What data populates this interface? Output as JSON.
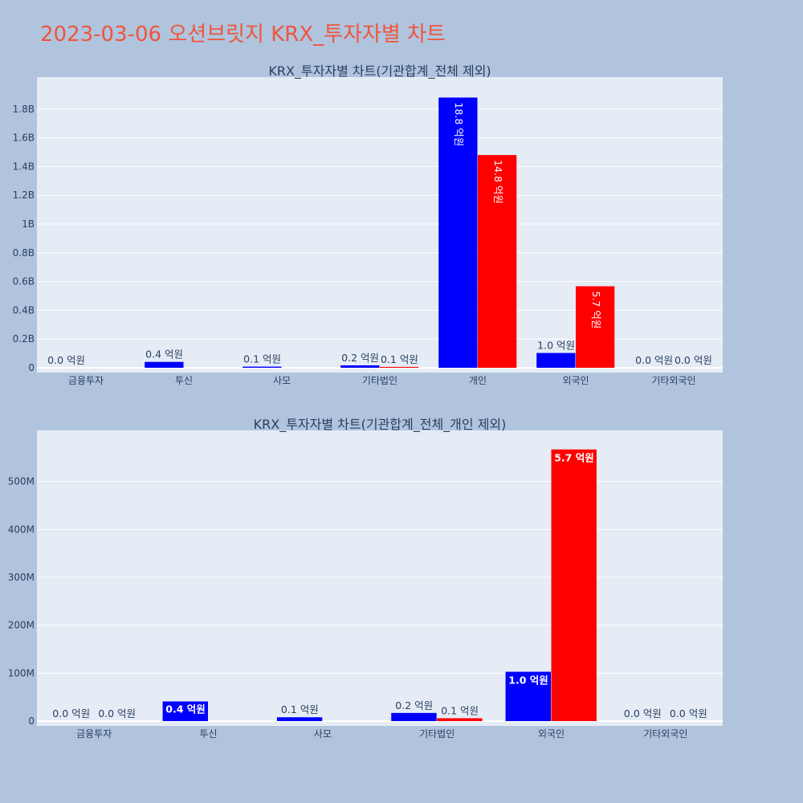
{
  "page": {
    "title": "2023-03-06 오션브릿지 KRX_투자자별 차트",
    "title_color": "#ef553b",
    "background": "#b0c4de",
    "plot_background": "#e5ecf6"
  },
  "chart_data": [
    {
      "type": "bar",
      "title": "KRX_투자자별 차트(기관합계_전체 제외)",
      "categories": [
        "금융투자",
        "투신",
        "사모",
        "기타법인",
        "개인",
        "외국인",
        "기타외국인"
      ],
      "series": [
        {
          "color": "#0000ff",
          "values": [
            0,
            41000000,
            8000000,
            17000000,
            1880000000,
            103000000,
            0
          ],
          "labels": [
            "0.0 억원",
            "0.4 억원",
            "0.1 억원",
            "0.2 억원",
            "18.8 억원",
            "1.0 억원",
            "0.0 억원"
          ]
        },
        {
          "color": "#ff0000",
          "values": [
            0,
            0,
            0,
            6000000,
            1480000000,
            567000000,
            0
          ],
          "labels": [
            "",
            "",
            "",
            "0.1 억원",
            "14.8 억원",
            "5.7 억원",
            "0.0 억원"
          ]
        }
      ],
      "ylim": [
        0,
        2000000000
      ],
      "yticks": [
        0,
        200000000,
        400000000,
        600000000,
        800000000,
        1000000000,
        1200000000,
        1400000000,
        1600000000,
        1800000000
      ],
      "ytick_labels": [
        "0",
        "0.2B",
        "0.4B",
        "0.6B",
        "0.8B",
        "1B",
        "1.2B",
        "1.4B",
        "1.6B",
        "1.8B"
      ],
      "grid": true,
      "xlabel": "",
      "ylabel": ""
    },
    {
      "type": "bar",
      "title": "KRX_투자자별 차트(기관합계_전체_개인 제외)",
      "categories": [
        "금융투자",
        "투신",
        "사모",
        "기타법인",
        "외국인",
        "기타외국인"
      ],
      "series": [
        {
          "color": "#0000ff",
          "values": [
            0,
            41000000,
            8000000,
            17000000,
            103000000,
            0
          ],
          "labels": [
            "0.0 억원",
            "0.4 억원",
            "0.1 억원",
            "0.2 억원",
            "1.0 억원",
            "0.0 억원"
          ]
        },
        {
          "color": "#ff0000",
          "values": [
            0,
            0,
            0,
            6000000,
            567000000,
            0
          ],
          "labels": [
            "0.0 억원",
            "",
            "",
            "0.1 억원",
            "5.7 억원",
            "0.0 억원"
          ]
        }
      ],
      "ylim": [
        0,
        600000000
      ],
      "yticks": [
        0,
        100000000,
        200000000,
        300000000,
        400000000,
        500000000
      ],
      "ytick_labels": [
        "0",
        "100M",
        "200M",
        "300M",
        "400M",
        "500M"
      ],
      "grid": true,
      "xlabel": "",
      "ylabel": ""
    }
  ]
}
